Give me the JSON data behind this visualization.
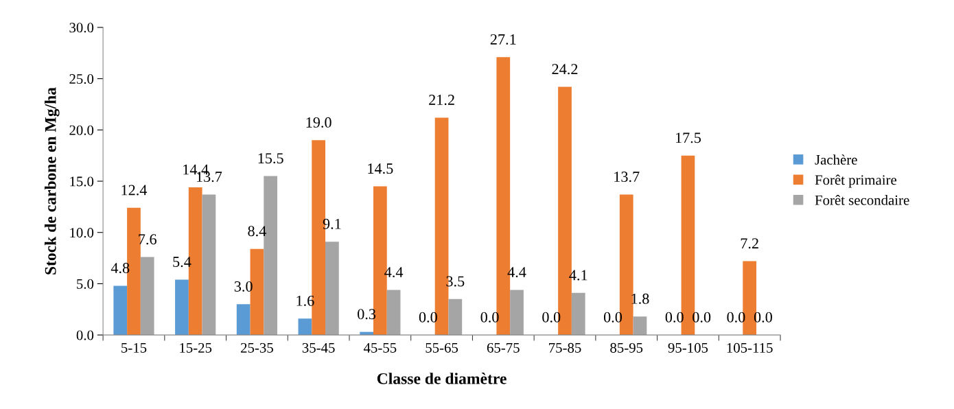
{
  "chart_data": {
    "type": "bar",
    "xlabel": "Classe de diamètre",
    "ylabel": "Stock de carbone en Mg/ha",
    "categories": [
      "5-15",
      "15-25",
      "25-35",
      "35-45",
      "45-55",
      "55-65",
      "65-75",
      "75-85",
      "85-95",
      "95-105",
      "105-115"
    ],
    "series": [
      {
        "name": "Jachère",
        "color": "#5b9bd5",
        "values": [
          4.8,
          5.4,
          3.0,
          1.6,
          0.3,
          0.0,
          0.0,
          0.0,
          0.0,
          0.0,
          0.0
        ],
        "value_labels": [
          "4.8",
          "5.4",
          "3.0",
          "1.6",
          "0.3",
          "0.0",
          "0.0",
          "0.0",
          "0.0",
          "0.0",
          "0.0"
        ]
      },
      {
        "name": "Forêt primaire",
        "color": "#ed7d31",
        "values": [
          12.4,
          14.4,
          8.4,
          19.0,
          14.5,
          21.2,
          27.1,
          24.2,
          13.7,
          17.5,
          7.2
        ],
        "value_labels": [
          "12.4",
          "14.4",
          "8.4",
          "19.0",
          "14.5",
          "21.2",
          "27.1",
          "24.2",
          "13.7",
          "17.5",
          "7.2"
        ]
      },
      {
        "name": "Forêt secondaire",
        "color": "#a5a5a5",
        "values": [
          7.6,
          13.7,
          15.5,
          9.1,
          4.4,
          3.5,
          4.4,
          4.1,
          1.8,
          0.0,
          0.0
        ],
        "value_labels": [
          "7.6",
          "13.7",
          "15.5",
          "9.1",
          "4.4",
          "3.5",
          "4.4",
          "4.1",
          "1.8",
          "0.0",
          "0.0"
        ]
      }
    ],
    "ylim": [
      0,
      30
    ],
    "yticks": [
      {
        "value": 0,
        "label": "0.0"
      },
      {
        "value": 5,
        "label": "5.0"
      },
      {
        "value": 10,
        "label": "10.0"
      },
      {
        "value": 15,
        "label": "15.0"
      },
      {
        "value": 20,
        "label": "20.0"
      },
      {
        "value": 25,
        "label": "25.0"
      },
      {
        "value": 30,
        "label": "30.0"
      }
    ],
    "legend": "right",
    "grid": false
  }
}
